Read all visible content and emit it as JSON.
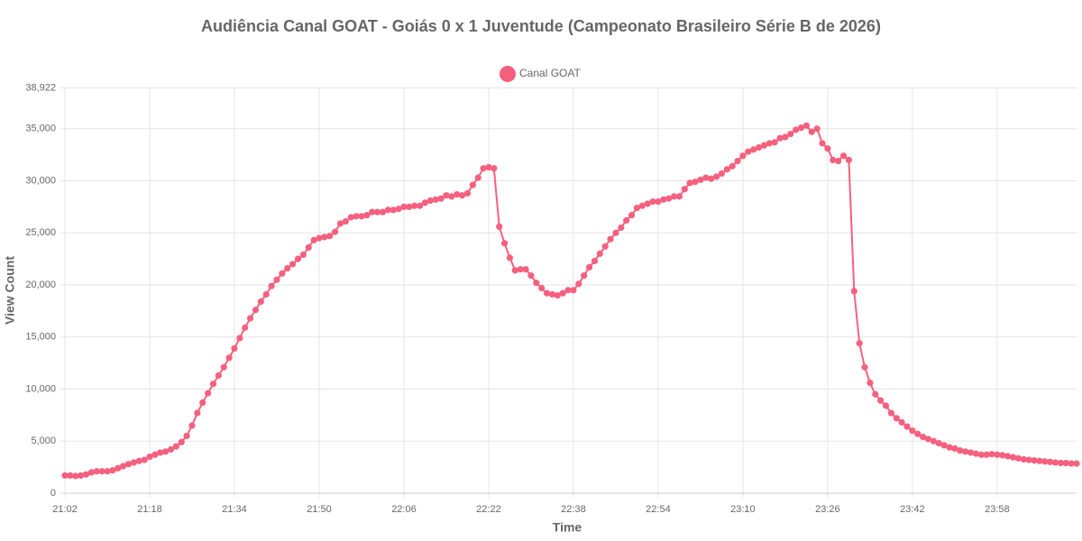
{
  "chart_data": {
    "type": "line",
    "title": "Audiência Canal GOAT - Goiás 0 x 1 Juventude (Campeonato Brasileiro Série B de 2026)",
    "x_label": "Time",
    "y_label": "View Count",
    "categories": [
      "21:02",
      null,
      null,
      null,
      null,
      null,
      null,
      null,
      null,
      null,
      null,
      null,
      null,
      null,
      null,
      null,
      "21:18",
      null,
      null,
      null,
      null,
      null,
      null,
      null,
      null,
      null,
      null,
      null,
      null,
      null,
      null,
      null,
      "21:34",
      null,
      null,
      null,
      null,
      null,
      null,
      null,
      null,
      null,
      null,
      null,
      null,
      null,
      null,
      null,
      "21:50",
      null,
      null,
      null,
      null,
      null,
      null,
      null,
      null,
      null,
      null,
      null,
      null,
      null,
      null,
      null,
      "22:06",
      null,
      null,
      null,
      null,
      null,
      null,
      null,
      null,
      null,
      null,
      null,
      null,
      null,
      null,
      null,
      "22:22",
      null,
      null,
      null,
      null,
      null,
      null,
      null,
      null,
      null,
      null,
      null,
      null,
      null,
      null,
      null,
      "22:38",
      null,
      null,
      null,
      null,
      null,
      null,
      null,
      null,
      null,
      null,
      null,
      null,
      null,
      null,
      null,
      "22:54",
      null,
      null,
      null,
      null,
      null,
      null,
      null,
      null,
      null,
      null,
      null,
      null,
      null,
      null,
      null,
      "23:10",
      null,
      null,
      null,
      null,
      null,
      null,
      null,
      null,
      null,
      null,
      null,
      null,
      null,
      null,
      null,
      "23:26",
      null,
      null,
      null,
      null,
      null,
      null,
      null,
      null,
      null,
      null,
      null,
      null,
      null,
      null,
      null,
      "23:42",
      null,
      null,
      null,
      null,
      null,
      null,
      null,
      null,
      null,
      null,
      null,
      null,
      null,
      null,
      null,
      "23:58",
      null,
      null,
      null,
      null,
      null,
      null,
      null,
      null,
      null,
      null,
      null,
      null,
      null,
      null,
      null
    ],
    "series": [
      {
        "name": "Canal GOAT",
        "color": "#f5607f",
        "values": [
          1700,
          1700,
          1650,
          1700,
          1800,
          2000,
          2100,
          2100,
          2100,
          2200,
          2400,
          2600,
          2800,
          2950,
          3100,
          3200,
          3500,
          3700,
          3900,
          4000,
          4200,
          4500,
          4900,
          5500,
          6500,
          7700,
          8700,
          9600,
          10500,
          11300,
          12100,
          13000,
          13900,
          14900,
          15900,
          16800,
          17600,
          18400,
          19100,
          19900,
          20500,
          21100,
          21600,
          22000,
          22500,
          22900,
          23600,
          24300,
          24500,
          24600,
          24700,
          25100,
          25900,
          26100,
          26500,
          26600,
          26600,
          26700,
          27000,
          27000,
          27000,
          27200,
          27200,
          27300,
          27500,
          27500,
          27600,
          27600,
          27900,
          28100,
          28200,
          28300,
          28600,
          28500,
          28700,
          28600,
          28800,
          29600,
          30300,
          31200,
          31300,
          31200,
          25600,
          24000,
          22600,
          21400,
          21500,
          21500,
          20900,
          20200,
          19700,
          19200,
          19100,
          19000,
          19200,
          19500,
          19500,
          20100,
          20900,
          21700,
          22300,
          23000,
          23700,
          24400,
          25000,
          25500,
          26200,
          26700,
          27400,
          27600,
          27800,
          28000,
          28000,
          28200,
          28300,
          28500,
          28500,
          29200,
          29800,
          29900,
          30100,
          30300,
          30200,
          30400,
          30700,
          31100,
          31400,
          31900,
          32400,
          32800,
          33000,
          33200,
          33400,
          33600,
          33700,
          34100,
          34200,
          34500,
          34900,
          35100,
          35300,
          34700,
          35000,
          33600,
          33100,
          32000,
          31900,
          32400,
          32000,
          19400,
          14400,
          12100,
          10600,
          9500,
          8900,
          8400,
          7700,
          7200,
          6800,
          6400,
          6000,
          5700,
          5400,
          5200,
          5000,
          4800,
          4600,
          4400,
          4300,
          4100,
          4000,
          3900,
          3800,
          3700,
          3700,
          3750,
          3700,
          3650,
          3550,
          3450,
          3350,
          3250,
          3200,
          3150,
          3100,
          3050,
          3000,
          2950,
          2900,
          2900,
          2850,
          2850
        ]
      }
    ],
    "ylim": [
      0,
      38922
    ],
    "yticks": [
      0,
      {
        "value": 5000,
        "label": "5,000"
      },
      {
        "value": 10000,
        "label": "10,000"
      },
      {
        "value": 15000,
        "label": "15,000"
      },
      {
        "value": 20000,
        "label": "20,000"
      },
      {
        "value": 25000,
        "label": "25,000"
      },
      {
        "value": 30000,
        "label": "30,000"
      },
      {
        "value": 35000,
        "label": "35,000"
      },
      {
        "value": 38922,
        "label": "38,922"
      }
    ],
    "grid": true
  }
}
